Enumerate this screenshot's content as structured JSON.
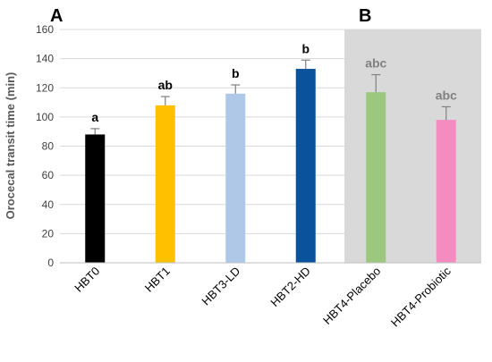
{
  "chart_data": {
    "type": "bar",
    "ylabel": "Orocecal transit time (min)",
    "ylim": [
      0,
      160
    ],
    "yticks": [
      0,
      20,
      40,
      60,
      80,
      100,
      120,
      140,
      160
    ],
    "panel_labels": [
      "A",
      "B"
    ],
    "categories": [
      "HBT0",
      "HBT1",
      "HBT3-LD",
      "HBT2-HD",
      "HBT4-Placebo",
      "HBT4-Probiotic"
    ],
    "values": [
      88,
      108,
      116,
      133,
      117,
      98
    ],
    "errors": [
      4,
      6,
      6,
      6,
      12,
      9
    ],
    "significance": [
      "a",
      "ab",
      "b",
      "b",
      "abc",
      "abc"
    ],
    "colors": [
      "#000000",
      "#FFC000",
      "#AFC8E8",
      "#0A529B",
      "#9BC77F",
      "#F48CC2"
    ],
    "shaded_categories": [
      "HBT4-Placebo",
      "HBT4-Probiotic"
    ],
    "shade_color": "#D9D9D9",
    "grid": true
  }
}
